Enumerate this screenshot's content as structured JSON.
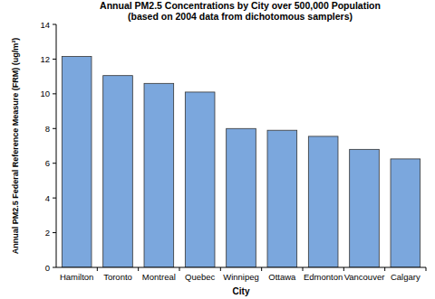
{
  "chart_data": {
    "type": "bar",
    "title": "Annual PM2.5 Concentrations by City over 500,000 Population",
    "subtitle": "(based on 2004 data from dichotomous samplers)",
    "x_label": "City",
    "y_label": "Annual PM2.5 Federal Reference Measure (FRM) (ug/m³)",
    "categories": [
      "Hamilton",
      "Toronto",
      "Montreal",
      "Quebec",
      "Winnipeg",
      "Ottawa",
      "Edmonton",
      "Vancouver",
      "Calgary"
    ],
    "values": [
      12.15,
      11.05,
      10.6,
      10.1,
      8.0,
      7.9,
      7.55,
      6.8,
      6.25
    ],
    "color": "#7ba7dd",
    "ylim": [
      0,
      14
    ],
    "yticks": [
      0,
      2,
      4,
      6,
      8,
      10,
      12,
      14
    ],
    "grid": false
  }
}
